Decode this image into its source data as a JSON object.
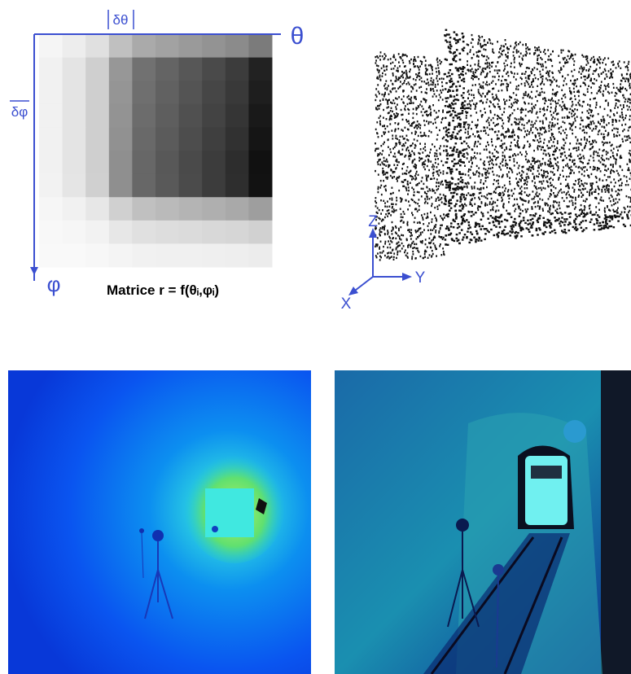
{
  "panel_a": {
    "theta_label": "θ",
    "dtheta_label": "δθ",
    "phi_label": "φ",
    "dphi_label": "δφ",
    "caption": "Matrice r = f(θᵢ,φᵢ)"
  },
  "panel_b": {
    "z_label": "Z",
    "y_label": "Y",
    "x_label": "X"
  }
}
